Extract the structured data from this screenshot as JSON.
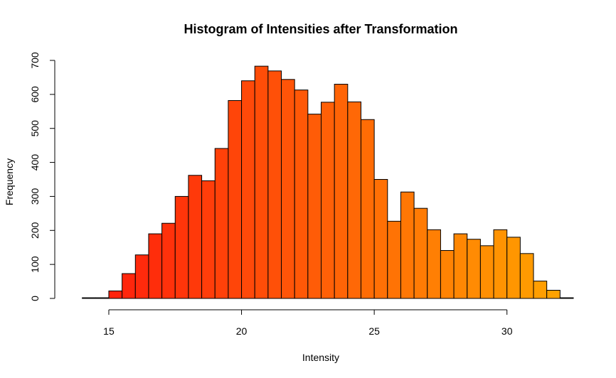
{
  "chart_data": {
    "type": "bar",
    "title": "Histogram of Intensities after Transformation",
    "xlabel": "Intensity",
    "ylabel": "Frequency",
    "xlim": [
      13.5,
      32.5
    ],
    "ylim": [
      0,
      700
    ],
    "x_ticks": [
      15,
      20,
      25,
      30
    ],
    "y_ticks": [
      0,
      100,
      200,
      300,
      400,
      500,
      600,
      700
    ],
    "bin_width": 0.5,
    "bin_starts": [
      14.0,
      14.5,
      15.0,
      15.5,
      16.0,
      16.5,
      17.0,
      17.5,
      18.0,
      18.5,
      19.0,
      19.5,
      20.0,
      20.5,
      21.0,
      21.5,
      22.0,
      22.5,
      23.0,
      23.5,
      24.0,
      24.5,
      25.0,
      25.5,
      26.0,
      26.5,
      27.0,
      27.5,
      28.0,
      28.5,
      29.0,
      29.5,
      30.0,
      30.5,
      31.0,
      31.5,
      32.0
    ],
    "values": [
      2,
      2,
      22,
      73,
      128,
      190,
      221,
      300,
      362,
      346,
      441,
      582,
      640,
      683,
      669,
      644,
      613,
      542,
      577,
      630,
      578,
      526,
      350,
      227,
      313,
      265,
      202,
      141,
      190,
      174,
      155,
      202,
      180,
      132,
      51,
      24,
      2
    ],
    "color_start": "#ff1a0d",
    "color_end": "#ffa600",
    "border_color": "#000000",
    "grid": false
  }
}
